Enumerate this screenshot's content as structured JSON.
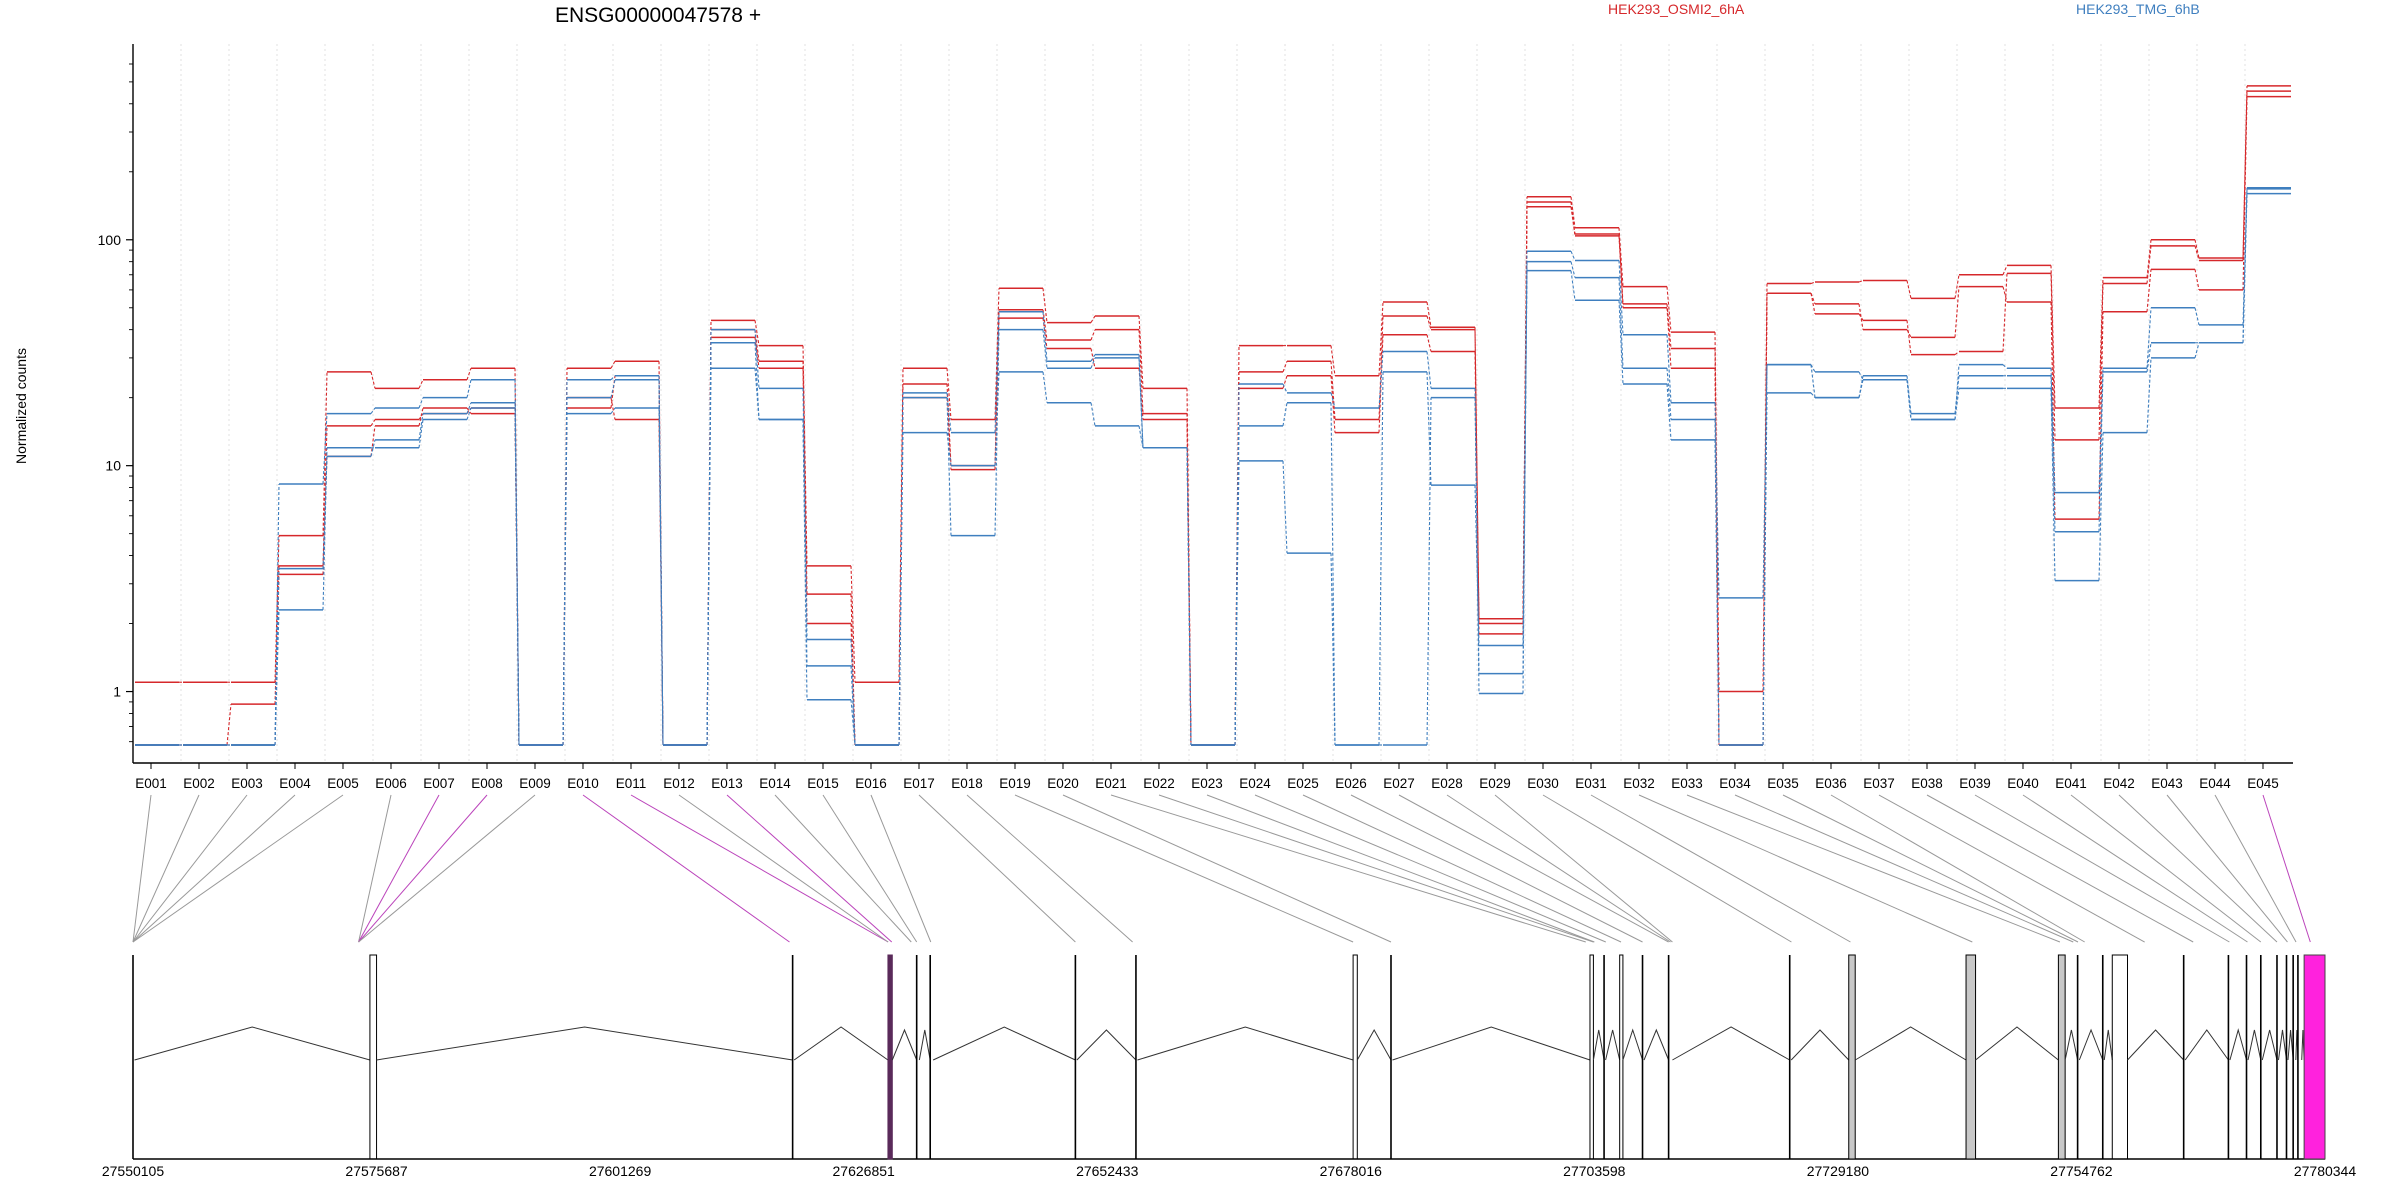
{
  "figure": {
    "gene_title": "ENSG00000047578 +",
    "y_axis_label": "Normalized counts"
  },
  "legend": [
    {
      "label": "HEK293_OSMI2_6hA",
      "color": "#d6282b"
    },
    {
      "label": "HEK293_TMG_6hB",
      "color": "#3f7fbf"
    }
  ],
  "chart_data": {
    "type": "line",
    "title": "ENSG00000047578 +",
    "ylabel": "Normalized counts",
    "xlabel": "",
    "y_scale": "log",
    "ylim": [
      0.58,
      600
    ],
    "yticks": [
      1,
      10,
      100
    ],
    "ytick_labels": [
      "1",
      "10",
      "100"
    ],
    "grid": "vertical dotted lines at exon boundaries",
    "categories": [
      "E001",
      "E002",
      "E003",
      "E004",
      "E005",
      "E006",
      "E007",
      "E008",
      "E009",
      "E010",
      "E011",
      "E012",
      "E013",
      "E014",
      "E015",
      "E016",
      "E017",
      "E018",
      "E019",
      "E020",
      "E021",
      "E022",
      "E023",
      "E024",
      "E025",
      "E026",
      "E027",
      "E028",
      "E029",
      "E030",
      "E031",
      "E032",
      "E033",
      "E034",
      "E035",
      "E036",
      "E037",
      "E038",
      "E039",
      "E040",
      "E041",
      "E042",
      "E043",
      "E044",
      "E045"
    ],
    "series": [
      {
        "group": "HEK293_OSMI2_6hA",
        "color": "#d6282b",
        "values": [
          1.1,
          1.1,
          1.1,
          4.9,
          26,
          22,
          24,
          27,
          0.58,
          27,
          29,
          0.58,
          44,
          34,
          3.6,
          1.1,
          27,
          16,
          61,
          43,
          46,
          22,
          0.58,
          34,
          34,
          25,
          53,
          41,
          2.1,
          155,
          113,
          62,
          39,
          1.0,
          64,
          65,
          66,
          55,
          70,
          77,
          18,
          68,
          100,
          83,
          480
        ]
      },
      {
        "group": "HEK293_OSMI2_6hA",
        "color": "#d6282b",
        "values": [
          0.58,
          0.58,
          0.88,
          3.6,
          15,
          16,
          17,
          18,
          0.58,
          20,
          16,
          0.58,
          40,
          29,
          2.7,
          0.58,
          23,
          10,
          49,
          36,
          40,
          17,
          0.58,
          26,
          29,
          16,
          46,
          40,
          2.0,
          147,
          106,
          52,
          33,
          0.58,
          58,
          47,
          44,
          31,
          32,
          71,
          13,
          64,
          94,
          81,
          455
        ]
      },
      {
        "group": "HEK293_OSMI2_6hA",
        "color": "#d6282b",
        "values": [
          0.58,
          0.58,
          0.58,
          3.3,
          11,
          15,
          18,
          17,
          0.58,
          18,
          25,
          0.58,
          37,
          27,
          2.0,
          0.58,
          20,
          9.6,
          45,
          33,
          27,
          16,
          0.58,
          22,
          25,
          14,
          38,
          32,
          1.8,
          140,
          104,
          50,
          27,
          0.58,
          58,
          52,
          40,
          37,
          62,
          53,
          5.8,
          48,
          74,
          60,
          430
        ]
      },
      {
        "group": "HEK293_TMG_6hB",
        "color": "#3f7fbf",
        "values": [
          0.58,
          0.58,
          0.58,
          8.3,
          17,
          18,
          20,
          24,
          0.58,
          24,
          25,
          0.58,
          40,
          22,
          1.7,
          0.58,
          21,
          14,
          48,
          29,
          31,
          12,
          0.58,
          23,
          21,
          18,
          32,
          22,
          0.98,
          89,
          81,
          38,
          19,
          2.6,
          28,
          26,
          24,
          16,
          28,
          27,
          7.6,
          27,
          50,
          42,
          170
        ]
      },
      {
        "group": "HEK293_TMG_6hB",
        "color": "#3f7fbf",
        "values": [
          0.58,
          0.58,
          0.58,
          3.5,
          11,
          13,
          17,
          19,
          0.58,
          20,
          24,
          0.58,
          35,
          16,
          1.3,
          0.58,
          20,
          4.9,
          40,
          27,
          30,
          12,
          0.58,
          15,
          19,
          0.58,
          26,
          8.2,
          1.6,
          80,
          68,
          27,
          16,
          0.58,
          28,
          20,
          25,
          17,
          25,
          25,
          5.1,
          26,
          35,
          35,
          160
        ]
      },
      {
        "group": "HEK293_TMG_6hB",
        "color": "#3f7fbf",
        "values": [
          0.58,
          0.58,
          0.58,
          2.3,
          12,
          12,
          16,
          18,
          0.58,
          17,
          18,
          0.58,
          27,
          16,
          0.92,
          0.58,
          14,
          10,
          26,
          19,
          15,
          12,
          0.58,
          10.5,
          4.1,
          0.58,
          0.58,
          20,
          1.2,
          73,
          54,
          23,
          13,
          0.58,
          21,
          20,
          24,
          16,
          22,
          22,
          3.1,
          14,
          30,
          35,
          168
        ]
      }
    ]
  },
  "gene_model": {
    "coord_start": 27550105,
    "coord_end": 27780344,
    "tick_labels": [
      "27550105",
      "27575687",
      "27601269",
      "27626851",
      "27652433",
      "27678016",
      "27703598",
      "27729180",
      "27754762",
      "27780344"
    ],
    "exon_pick_color": "#bb44bb",
    "highlight_color": "#ff22dd",
    "exons": [
      {
        "start": 27550105,
        "end": 27550250,
        "type": "line"
      },
      {
        "start": 27574990,
        "end": 27575687,
        "type": "box"
      },
      {
        "start": 27619390,
        "end": 27619530,
        "type": "line"
      },
      {
        "start": 27629400,
        "end": 27629860,
        "type": "purple"
      },
      {
        "start": 27632420,
        "end": 27632700,
        "type": "line"
      },
      {
        "start": 27633840,
        "end": 27634150,
        "type": "line"
      },
      {
        "start": 27649090,
        "end": 27649230,
        "type": "line"
      },
      {
        "start": 27655450,
        "end": 27655580,
        "type": "line"
      },
      {
        "start": 27678260,
        "end": 27678700,
        "type": "box"
      },
      {
        "start": 27682240,
        "end": 27682380,
        "type": "line"
      },
      {
        "start": 27703140,
        "end": 27703500,
        "type": "box"
      },
      {
        "start": 27704620,
        "end": 27704780,
        "type": "line"
      },
      {
        "start": 27706260,
        "end": 27706600,
        "type": "box"
      },
      {
        "start": 27708660,
        "end": 27708800,
        "type": "line"
      },
      {
        "start": 27711400,
        "end": 27711800,
        "type": "line"
      },
      {
        "start": 27724120,
        "end": 27724260,
        "type": "line"
      },
      {
        "start": 27730320,
        "end": 27731000,
        "type": "gray"
      },
      {
        "start": 27742640,
        "end": 27743640,
        "type": "gray"
      },
      {
        "start": 27752340,
        "end": 27753050,
        "type": "gray"
      },
      {
        "start": 27754360,
        "end": 27754540,
        "type": "line"
      },
      {
        "start": 27757000,
        "end": 27757150,
        "type": "line"
      },
      {
        "start": 27758000,
        "end": 27759600,
        "type": "box"
      },
      {
        "start": 27765500,
        "end": 27765640,
        "type": "line"
      },
      {
        "start": 27770200,
        "end": 27770340,
        "type": "line"
      },
      {
        "start": 27772100,
        "end": 27772240,
        "type": "line"
      },
      {
        "start": 27773600,
        "end": 27773740,
        "type": "line"
      },
      {
        "start": 27775300,
        "end": 27775440,
        "type": "line"
      },
      {
        "start": 27776300,
        "end": 27776450,
        "type": "line"
      },
      {
        "start": 27777000,
        "end": 27777280,
        "type": "line"
      },
      {
        "start": 27777500,
        "end": 27777900,
        "type": "line"
      },
      {
        "start": 27778150,
        "end": 27780344,
        "type": "highlight"
      }
    ],
    "exon_links": [
      {
        "label": "E001",
        "pos": 27550105,
        "color": "#999999"
      },
      {
        "label": "E002",
        "pos": 27550105,
        "color": "#999999"
      },
      {
        "label": "E003",
        "pos": 27550105,
        "color": "#999999"
      },
      {
        "label": "E004",
        "pos": 27550105,
        "color": "#999999"
      },
      {
        "label": "E005",
        "pos": 27550105,
        "color": "#999999"
      },
      {
        "label": "E006",
        "pos": 27573800,
        "color": "#999999"
      },
      {
        "label": "E007",
        "pos": 27573800,
        "color": "#bb44bb"
      },
      {
        "label": "E008",
        "pos": 27573800,
        "color": "#bb44bb"
      },
      {
        "label": "E009",
        "pos": 27573800,
        "color": "#999999"
      },
      {
        "label": "E010",
        "pos": 27619060,
        "color": "#bb44bb"
      },
      {
        "label": "E011",
        "pos": 27629420,
        "color": "#bb44bb"
      },
      {
        "label": "E012",
        "pos": 27629420,
        "color": "#999999"
      },
      {
        "label": "E013",
        "pos": 27629800,
        "color": "#bb44bb"
      },
      {
        "label": "E014",
        "pos": 27631850,
        "color": "#999999"
      },
      {
        "label": "E015",
        "pos": 27632420,
        "color": "#999999"
      },
      {
        "label": "E016",
        "pos": 27633900,
        "color": "#999999"
      },
      {
        "label": "E017",
        "pos": 27649090,
        "color": "#999999"
      },
      {
        "label": "E018",
        "pos": 27655100,
        "color": "#999999"
      },
      {
        "label": "E019",
        "pos": 27678260,
        "color": "#999999"
      },
      {
        "label": "E020",
        "pos": 27682240,
        "color": "#999999"
      },
      {
        "label": "E021",
        "pos": 27702700,
        "color": "#999999"
      },
      {
        "label": "E022",
        "pos": 27703500,
        "color": "#999999"
      },
      {
        "label": "E023",
        "pos": 27703600,
        "color": "#999999"
      },
      {
        "label": "E024",
        "pos": 27704800,
        "color": "#999999"
      },
      {
        "label": "E025",
        "pos": 27706400,
        "color": "#999999"
      },
      {
        "label": "E026",
        "pos": 27708660,
        "color": "#999999"
      },
      {
        "label": "E027",
        "pos": 27711400,
        "color": "#999999"
      },
      {
        "label": "E028",
        "pos": 27711600,
        "color": "#999999"
      },
      {
        "label": "E029",
        "pos": 27711800,
        "color": "#999999"
      },
      {
        "label": "E030",
        "pos": 27724300,
        "color": "#999999"
      },
      {
        "label": "E031",
        "pos": 27730500,
        "color": "#999999"
      },
      {
        "label": "E032",
        "pos": 27743300,
        "color": "#999999"
      },
      {
        "label": "E033",
        "pos": 27752500,
        "color": "#999999"
      },
      {
        "label": "E034",
        "pos": 27753900,
        "color": "#999999"
      },
      {
        "label": "E035",
        "pos": 27754400,
        "color": "#999999"
      },
      {
        "label": "E036",
        "pos": 27755100,
        "color": "#999999"
      },
      {
        "label": "E037",
        "pos": 27761400,
        "color": "#999999"
      },
      {
        "label": "E038",
        "pos": 27766500,
        "color": "#999999"
      },
      {
        "label": "E039",
        "pos": 27770300,
        "color": "#999999"
      },
      {
        "label": "E040",
        "pos": 27772200,
        "color": "#999999"
      },
      {
        "label": "E041",
        "pos": 27773600,
        "color": "#999999"
      },
      {
        "label": "E042",
        "pos": 27775300,
        "color": "#999999"
      },
      {
        "label": "E043",
        "pos": 27776400,
        "color": "#999999"
      },
      {
        "label": "E044",
        "pos": 27777300,
        "color": "#999999"
      },
      {
        "label": "E045",
        "pos": 27778800,
        "color": "#bb44bb"
      }
    ]
  }
}
